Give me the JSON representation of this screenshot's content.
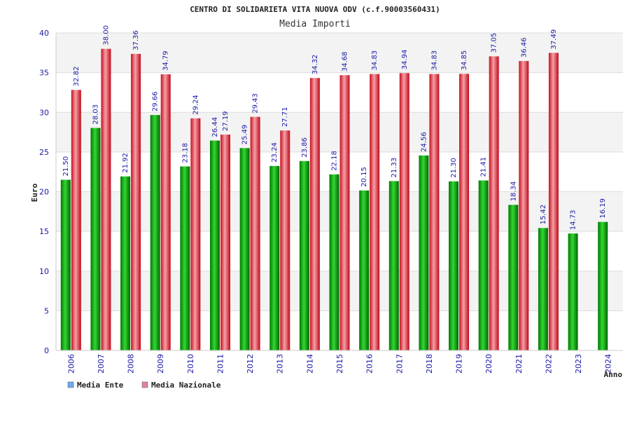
{
  "chart_data": {
    "type": "bar",
    "title": "CENTRO DI SOLIDARIETA VITA NUOVA ODV (c.f.90003560431)",
    "subtitle": "Media Importi",
    "ylabel": "Euro",
    "xlabel": "Anno",
    "ylim": [
      0,
      40
    ],
    "yticks": [
      0,
      5,
      10,
      15,
      20,
      25,
      30,
      35,
      40
    ],
    "grid": true,
    "legend_position": "bottom-left",
    "categories": [
      "2006",
      "2007",
      "2008",
      "2009",
      "2010",
      "2011",
      "2012",
      "2013",
      "2014",
      "2015",
      "2016",
      "2017",
      "2018",
      "2019",
      "2020",
      "2021",
      "2022",
      "2023",
      "2024"
    ],
    "series": [
      {
        "name": "Media Ente",
        "color": "#00a000",
        "legend_color": "#6fa8f0",
        "values": [
          21.5,
          28.03,
          21.92,
          29.66,
          23.18,
          26.44,
          25.49,
          23.24,
          23.86,
          22.18,
          20.15,
          21.33,
          24.56,
          21.3,
          21.41,
          18.34,
          15.42,
          14.73,
          16.19
        ],
        "labels": [
          "21.50",
          "28.03",
          "21.92",
          "29.66",
          "23.18",
          "26.44",
          "25.49",
          "23.24",
          "23.86",
          "22.18",
          "20.15",
          "21.33",
          "24.56",
          "21.30",
          "21.41",
          "18.34",
          "15.42",
          "14.73",
          "16.19"
        ]
      },
      {
        "name": "Media Nazionale",
        "color": "#e02030",
        "legend_color": "#e080a8",
        "values": [
          32.82,
          38.0,
          37.36,
          34.79,
          29.24,
          27.19,
          29.43,
          27.71,
          34.32,
          34.68,
          34.83,
          34.94,
          34.83,
          34.85,
          37.05,
          36.46,
          37.49,
          null,
          null
        ],
        "labels": [
          "32.82",
          "38.00",
          "37.36",
          "34.79",
          "29.24",
          "27.19",
          "29.43",
          "27.71",
          "34.32",
          "34.68",
          "34.83",
          "34.94",
          "34.83",
          "34.85",
          "37.05",
          "36.46",
          "37.49",
          "",
          ""
        ]
      }
    ]
  }
}
